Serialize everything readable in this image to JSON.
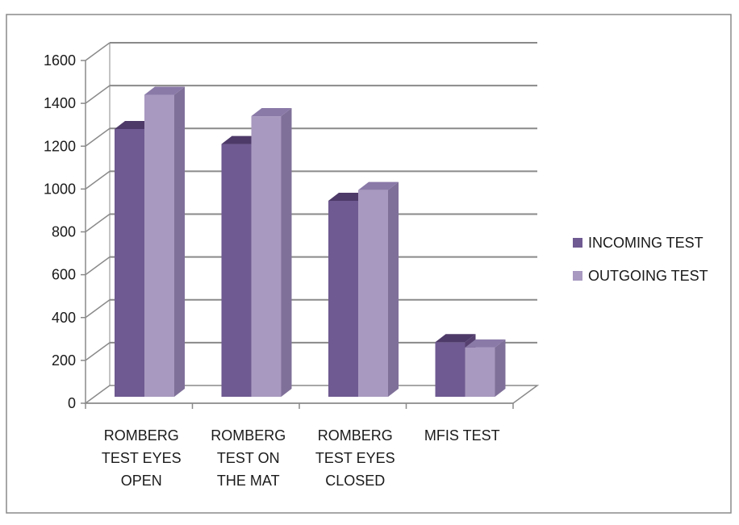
{
  "chart_data": {
    "type": "bar",
    "categories": [
      [
        "ROMBERG",
        "TEST EYES",
        "OPEN"
      ],
      [
        "ROMBERG",
        "TEST ON",
        "THE MAT"
      ],
      [
        "ROMBERG",
        "TEST EYES",
        "CLOSED"
      ],
      [
        "MFIS TEST"
      ]
    ],
    "series": [
      {
        "name": "INCOMING TEST",
        "values": [
          1250,
          1180,
          915,
          255
        ],
        "color": "#6f5a91"
      },
      {
        "name": "OUTGOING TEST",
        "values": [
          1410,
          1310,
          965,
          230
        ],
        "color": "#a899c0"
      }
    ],
    "ylim": [
      0,
      1600
    ],
    "yticks": [
      "0",
      "200",
      "400",
      "600",
      "800",
      "1000",
      "1200",
      "1400",
      "1600"
    ],
    "grid": true,
    "three_d": true,
    "legend_position": "right",
    "colors": {
      "wall": "#ffffff",
      "gridline": "#8a8a8a",
      "axis": "#8a8a8a",
      "frame": "#8a8a8a"
    }
  }
}
